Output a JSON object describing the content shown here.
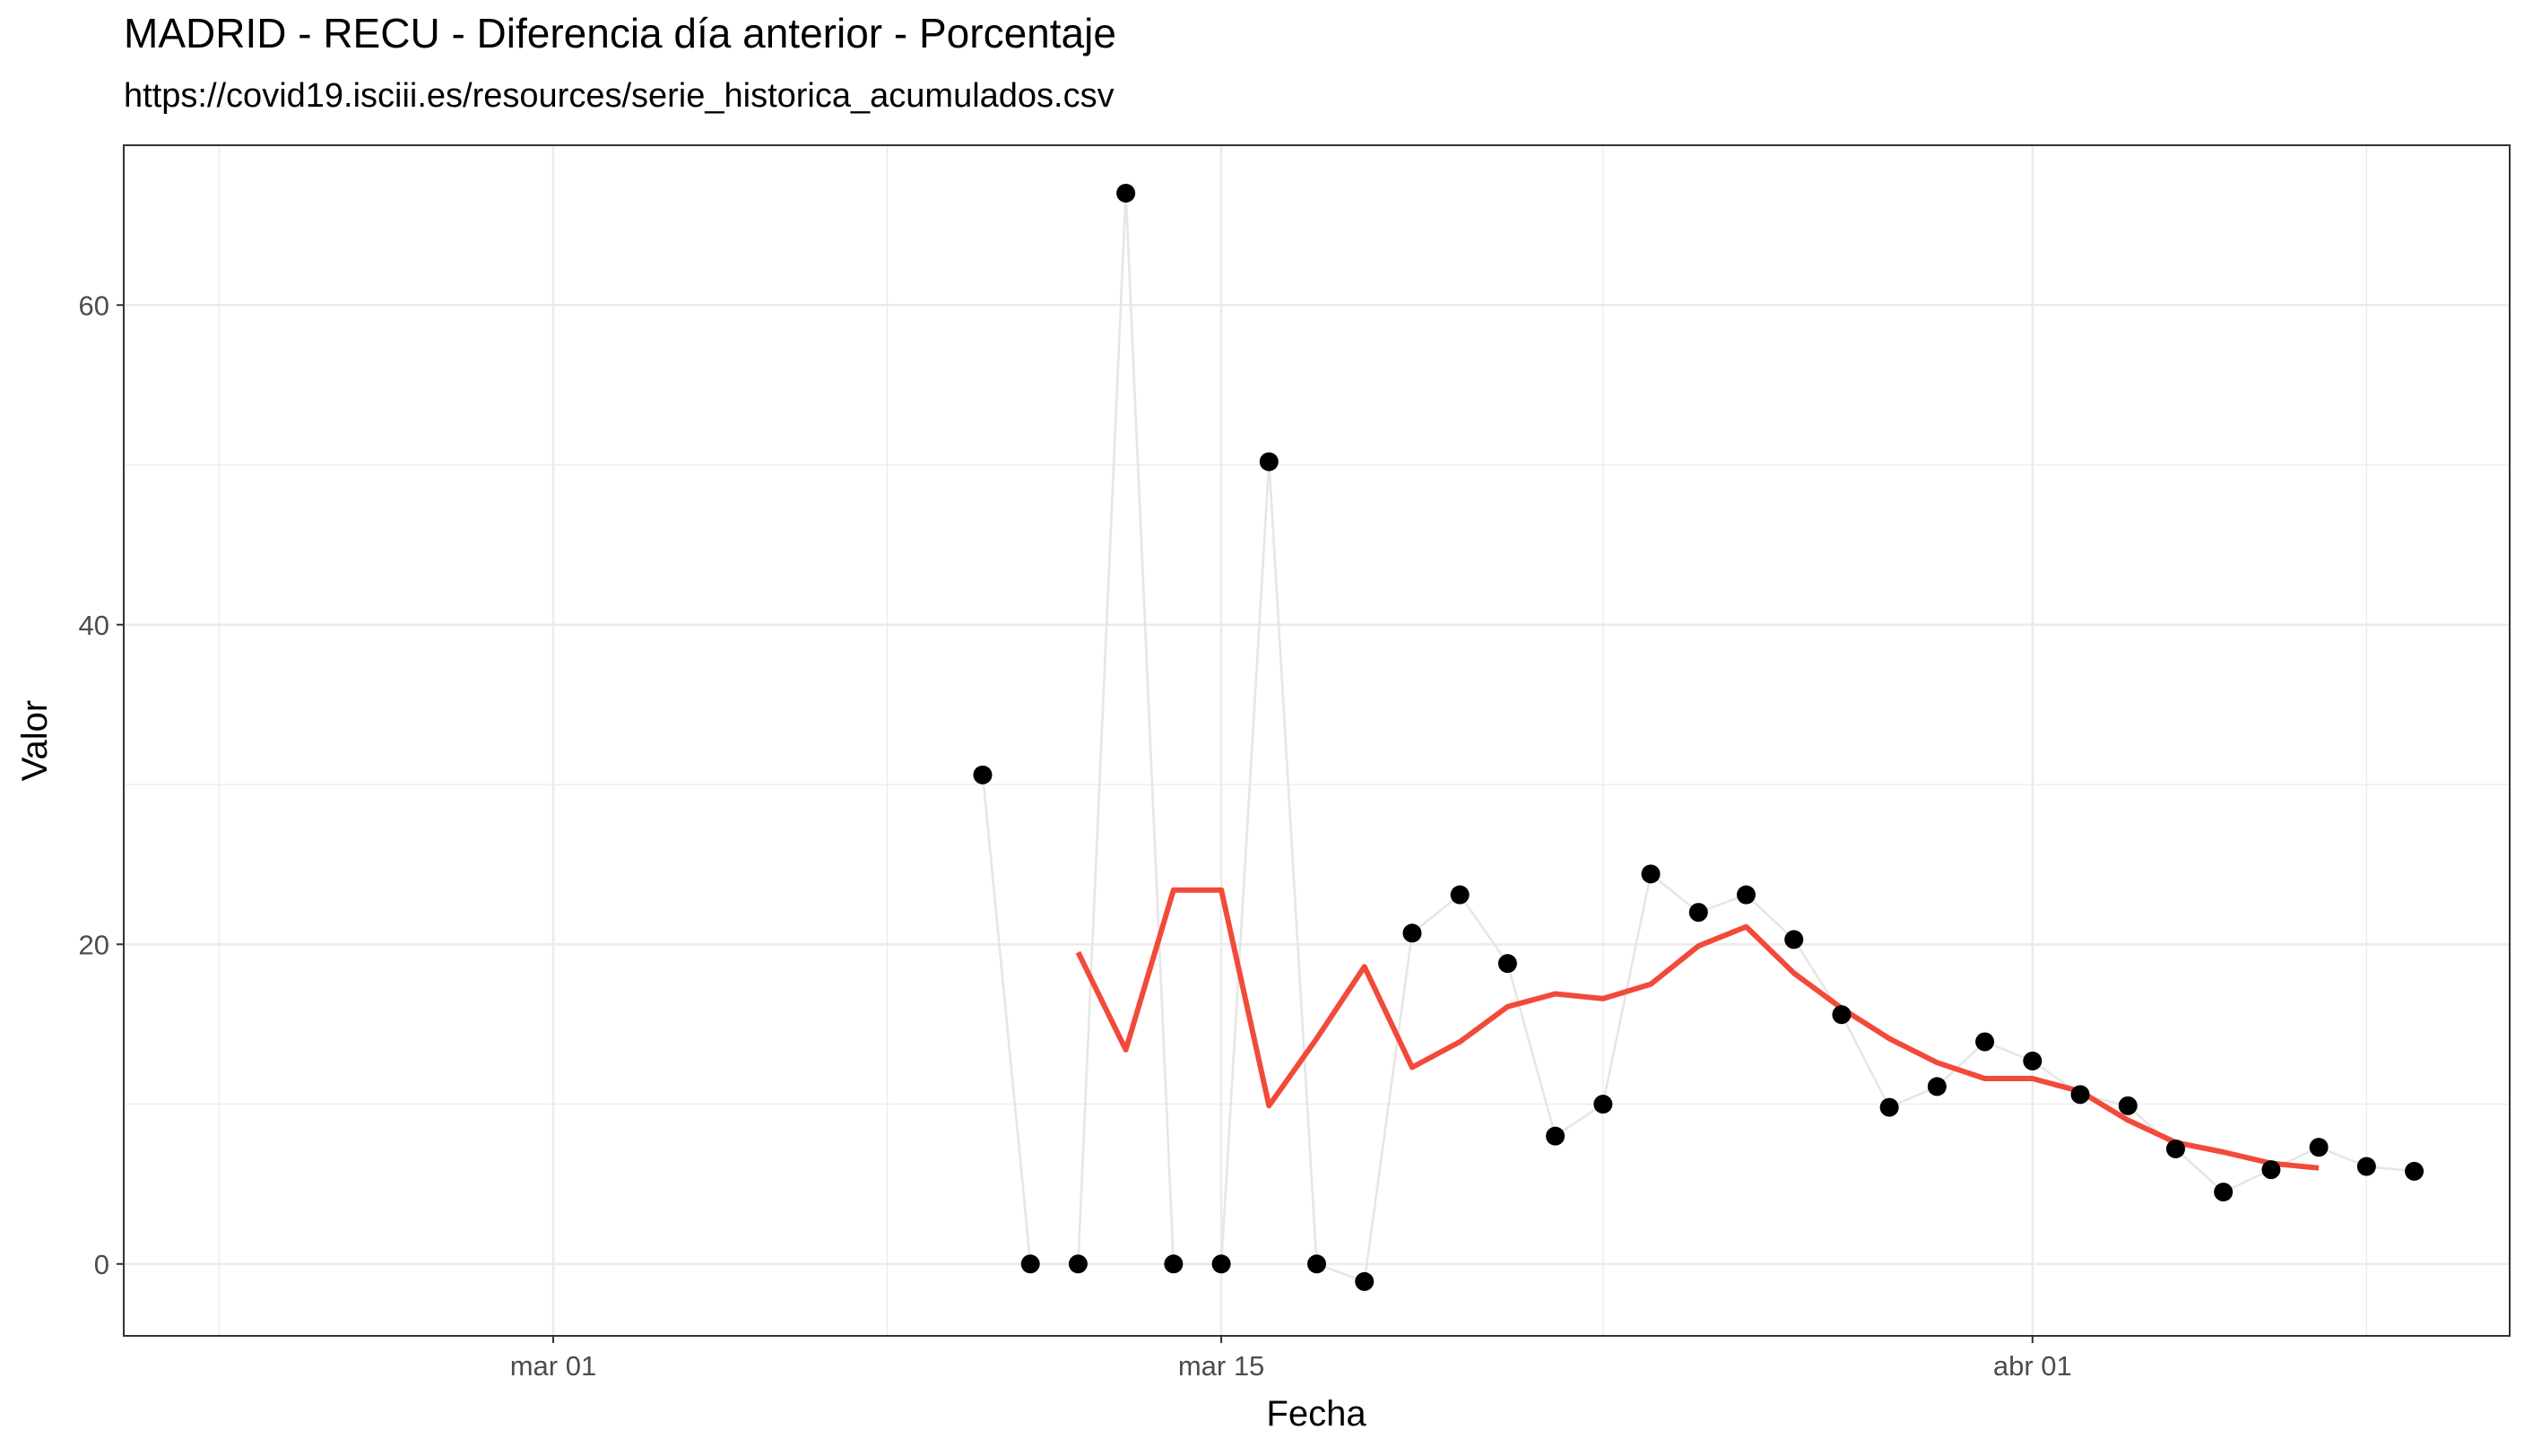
{
  "chart_data": {
    "type": "line",
    "title": "MADRID - RECU - Diferencia día anterior - Porcentaje",
    "subtitle": "https://covid19.isciii.es/resources/serie_historica_acumulados.csv",
    "xlabel": "Fecha",
    "ylabel": "Valor",
    "xlim": [
      "2020-02-21",
      "2020-04-11"
    ],
    "ylim": [
      -4.5,
      70
    ],
    "x_ticks": [
      {
        "date": "2020-03-01",
        "label": "mar 01"
      },
      {
        "date": "2020-03-15",
        "label": "mar 15"
      },
      {
        "date": "2020-04-01",
        "label": "abr 01"
      }
    ],
    "x_minor_ticks": [
      "2020-02-23",
      "2020-03-08",
      "2020-03-23",
      "2020-04-08"
    ],
    "y_ticks": [
      0,
      20,
      40,
      60
    ],
    "y_minor_ticks": [
      10,
      30,
      50
    ],
    "grid": true,
    "legend": "none",
    "colors": {
      "points": "#000000",
      "raw_line": "#e6e6e6",
      "smooth_line": "#f24a3a",
      "grid": "#ebebeb",
      "panel_border": "#333333",
      "tick_text": "#4d4d4d"
    },
    "series": [
      {
        "style": "points-and-line",
        "x": [
          "2020-03-10",
          "2020-03-11",
          "2020-03-12",
          "2020-03-13",
          "2020-03-14",
          "2020-03-15",
          "2020-03-16",
          "2020-03-17",
          "2020-03-18",
          "2020-03-19",
          "2020-03-20",
          "2020-03-21",
          "2020-03-22",
          "2020-03-23",
          "2020-03-24",
          "2020-03-25",
          "2020-03-26",
          "2020-03-27",
          "2020-03-28",
          "2020-03-29",
          "2020-03-30",
          "2020-03-31",
          "2020-04-01",
          "2020-04-02",
          "2020-04-03",
          "2020-04-04",
          "2020-04-05",
          "2020-04-06",
          "2020-04-07",
          "2020-04-08",
          "2020-04-09"
        ],
        "values": [
          30.6,
          0,
          0,
          67.0,
          0,
          0,
          50.2,
          0,
          -1.1,
          20.7,
          23.1,
          18.8,
          8.0,
          10.0,
          24.4,
          22.0,
          23.1,
          20.3,
          15.6,
          9.8,
          11.1,
          13.9,
          12.7,
          10.6,
          9.9,
          7.2,
          4.5,
          5.9,
          7.3,
          6.1,
          5.8
        ]
      },
      {
        "style": "smoothed-line",
        "x": [
          "2020-03-12",
          "2020-03-13",
          "2020-03-14",
          "2020-03-15",
          "2020-03-16",
          "2020-03-17",
          "2020-03-18",
          "2020-03-19",
          "2020-03-20",
          "2020-03-21",
          "2020-03-22",
          "2020-03-23",
          "2020-03-24",
          "2020-03-25",
          "2020-03-26",
          "2020-03-27",
          "2020-03-28",
          "2020-03-29",
          "2020-03-30",
          "2020-03-31",
          "2020-04-01",
          "2020-04-02",
          "2020-04-03",
          "2020-04-04",
          "2020-04-05",
          "2020-04-06",
          "2020-04-07"
        ],
        "values": [
          19.5,
          13.4,
          23.4,
          23.4,
          9.9,
          14.1,
          18.6,
          12.3,
          13.9,
          16.1,
          16.9,
          16.6,
          17.5,
          19.9,
          21.1,
          18.2,
          16.0,
          14.1,
          12.6,
          11.6,
          11.6,
          10.8,
          9.0,
          7.6,
          7.0,
          6.3,
          6.0
        ]
      }
    ]
  }
}
